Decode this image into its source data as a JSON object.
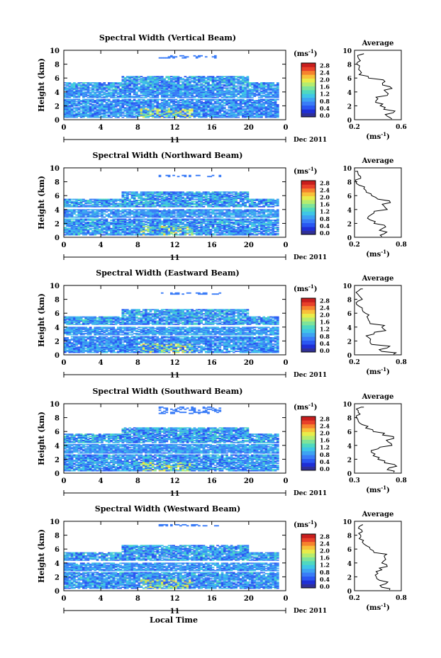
{
  "figure": {
    "xlabel_bottom": "Local Time"
  },
  "chart_data": [
    {
      "type": "heatmap",
      "title": "Spectral Width (Vertical Beam)",
      "ylabel": "Height (km)",
      "xticks": [
        "0",
        "4",
        "8",
        "12",
        "16",
        "20",
        "0"
      ],
      "yticks": [
        "0",
        "2",
        "4",
        "6",
        "8",
        "10"
      ],
      "xlim": [
        0,
        24
      ],
      "ylim": [
        0,
        10
      ],
      "day_label": "11",
      "date_label": "Dec 2011",
      "colorbar": {
        "unit": "(ms",
        "unit_exp": "-1",
        "unit_close": ")",
        "ticks": [
          "0.0",
          "0.4",
          "0.8",
          "1.2",
          "1.6",
          "2.0",
          "2.4",
          "2.8"
        ]
      },
      "cloud_layers": [
        [
          0.3,
          2.9,
          0.15,
          0.7
        ],
        [
          3.0,
          4.2,
          0.2,
          0.6
        ],
        [
          4.2,
          6.3,
          0.15,
          0.8
        ]
      ],
      "high_patch": [
        8.8,
        9.2
      ],
      "profile": {
        "title": "Average",
        "xticks": [
          "0.2",
          "0.6"
        ],
        "xlim": [
          0.2,
          0.6
        ],
        "xunit": "(ms",
        "xunit_exp": "-1",
        "xunit_close": ")",
        "heights": [
          0.1,
          0.5,
          1,
          1.5,
          2,
          2.5,
          3,
          3.5,
          4,
          4.5,
          5,
          5.5,
          6,
          6.5,
          7,
          7.5,
          8,
          8.5,
          9,
          9.5
        ],
        "values": [
          0.52,
          0.48,
          0.53,
          0.45,
          0.42,
          0.38,
          0.4,
          0.48,
          0.47,
          0.52,
          0.44,
          0.46,
          0.32,
          0.24,
          0.25,
          0.24,
          0.22,
          0.25,
          0.23,
          0.28
        ]
      }
    },
    {
      "type": "heatmap",
      "title": "Spectral Width (Northward Beam)",
      "ylabel": "Height (km)",
      "xticks": [
        "0",
        "4",
        "8",
        "12",
        "16",
        "20",
        "0"
      ],
      "yticks": [
        "0",
        "2",
        "4",
        "6",
        "8",
        "10"
      ],
      "xlim": [
        0,
        24
      ],
      "ylim": [
        0,
        10
      ],
      "day_label": "11",
      "date_label": "Dec 2011",
      "colorbar": {
        "unit": "(ms",
        "unit_exp": "-1",
        "unit_close": ")",
        "ticks": [
          "0.0",
          "0.4",
          "0.8",
          "1.2",
          "1.6",
          "2.0",
          "2.4",
          "2.8"
        ]
      },
      "cloud_layers": [
        [
          0.3,
          2.6,
          0.15,
          0.75
        ],
        [
          2.8,
          4.0,
          0.2,
          0.6
        ],
        [
          4.3,
          6.5,
          0.15,
          0.8
        ]
      ],
      "high_patch": [
        8.6,
        9.0
      ],
      "profile": {
        "title": "Average",
        "xticks": [
          "0.2",
          "0.8"
        ],
        "xlim": [
          0.2,
          0.8
        ],
        "xunit": "(ms",
        "xunit_exp": "-1",
        "xunit_close": ")",
        "heights": [
          0.1,
          0.5,
          1,
          1.5,
          2,
          2.5,
          3,
          3.5,
          4,
          4.5,
          5,
          5.5,
          6,
          6.5,
          7,
          7.5,
          8,
          8.5,
          9,
          9.5
        ],
        "values": [
          0.55,
          0.58,
          0.52,
          0.6,
          0.45,
          0.4,
          0.38,
          0.45,
          0.62,
          0.58,
          0.66,
          0.5,
          0.42,
          0.35,
          0.32,
          0.26,
          0.22,
          0.28,
          0.25,
          0.24
        ]
      }
    },
    {
      "type": "heatmap",
      "title": "Spectral Width (Eastward Beam)",
      "ylabel": "Height (km)",
      "xticks": [
        "0",
        "4",
        "8",
        "12",
        "16",
        "20",
        "0"
      ],
      "yticks": [
        "0",
        "2",
        "4",
        "6",
        "8",
        "10"
      ],
      "xlim": [
        0,
        24
      ],
      "ylim": [
        0,
        10
      ],
      "day_label": "11",
      "date_label": "Dec 2011",
      "colorbar": {
        "unit": "(ms",
        "unit_exp": "-1",
        "unit_close": ")",
        "ticks": [
          "0.0",
          "0.4",
          "0.8",
          "1.2",
          "1.6",
          "2.0",
          "2.4",
          "2.8"
        ]
      },
      "cloud_layers": [
        [
          0.3,
          2.6,
          0.15,
          0.7
        ],
        [
          2.8,
          4.0,
          0.2,
          0.6
        ],
        [
          4.2,
          6.6,
          0.15,
          0.8
        ]
      ],
      "high_patch": [
        8.6,
        9.0
      ],
      "profile": {
        "title": "Average",
        "xticks": [
          "0.2",
          "0.8"
        ],
        "xlim": [
          0.2,
          0.8
        ],
        "xunit": "(ms",
        "xunit_exp": "-1",
        "xunit_close": ")",
        "heights": [
          0.1,
          0.5,
          1,
          1.5,
          2,
          2.5,
          3,
          3.5,
          4,
          4.5,
          5,
          5.5,
          6,
          6.5,
          7,
          7.5,
          8,
          8.5,
          9,
          9.5
        ],
        "values": [
          0.7,
          0.55,
          0.62,
          0.42,
          0.4,
          0.38,
          0.45,
          0.6,
          0.55,
          0.4,
          0.38,
          0.36,
          0.34,
          0.3,
          0.26,
          0.22,
          0.3,
          0.26,
          0.22,
          0.28
        ]
      }
    },
    {
      "type": "heatmap",
      "title": "Spectral Width (Southward Beam)",
      "ylabel": "Height (km)",
      "xticks": [
        "0",
        "4",
        "8",
        "12",
        "16",
        "20",
        "0"
      ],
      "yticks": [
        "0",
        "2",
        "4",
        "6",
        "8",
        "10"
      ],
      "xlim": [
        0,
        24
      ],
      "ylim": [
        0,
        10
      ],
      "day_label": "11",
      "date_label": "Dec 2011",
      "colorbar": {
        "unit": "(ms",
        "unit_exp": "-1",
        "unit_close": ")",
        "ticks": [
          "0.0",
          "0.4",
          "0.8",
          "1.2",
          "1.6",
          "2.0",
          "2.4",
          "2.8"
        ]
      },
      "cloud_layers": [
        [
          0.3,
          2.6,
          0.15,
          0.75
        ],
        [
          2.8,
          4.1,
          0.2,
          0.6
        ],
        [
          4.3,
          6.6,
          0.15,
          0.8
        ]
      ],
      "high_patch": [
        8.5,
        9.5
      ],
      "profile": {
        "title": "Average",
        "xticks": [
          "0.3",
          "0.8"
        ],
        "xlim": [
          0.3,
          0.8
        ],
        "xunit": "(ms",
        "xunit_exp": "-1",
        "xunit_close": ")",
        "heights": [
          0.1,
          0.5,
          1,
          1.5,
          2,
          2.5,
          3,
          3.5,
          4,
          4.5,
          5,
          5.5,
          6,
          6.5,
          7,
          7.5,
          8,
          8.5,
          9,
          9.5
        ],
        "values": [
          0.72,
          0.65,
          0.75,
          0.62,
          0.55,
          0.5,
          0.48,
          0.55,
          0.7,
          0.66,
          0.72,
          0.6,
          0.5,
          0.42,
          0.38,
          0.34,
          0.32,
          0.36,
          0.34,
          0.37
        ]
      }
    },
    {
      "type": "heatmap",
      "title": "Spectral Width (Westward Beam)",
      "ylabel": "Height (km)",
      "xticks": [
        "0",
        "4",
        "8",
        "12",
        "16",
        "20",
        "0"
      ],
      "yticks": [
        "0",
        "2",
        "4",
        "6",
        "8",
        "10"
      ],
      "xlim": [
        0,
        24
      ],
      "ylim": [
        0,
        10
      ],
      "day_label": "11",
      "date_label": "Dec 2011",
      "colorbar": {
        "unit": "(ms",
        "unit_exp": "-1",
        "unit_close": ")",
        "ticks": [
          "0.0",
          "0.4",
          "0.8",
          "1.2",
          "1.6",
          "2.0",
          "2.4",
          "2.8"
        ]
      },
      "cloud_layers": [
        [
          0.3,
          2.6,
          0.15,
          0.75
        ],
        [
          2.8,
          4.0,
          0.2,
          0.6
        ],
        [
          4.2,
          6.6,
          0.15,
          0.8
        ]
      ],
      "high_patch": [
        9.2,
        9.6
      ],
      "profile": {
        "title": "Average",
        "xticks": [
          "0.2",
          "0.8"
        ],
        "xlim": [
          0.2,
          0.8
        ],
        "xunit": "(ms",
        "xunit_exp": "-1",
        "xunit_close": ")",
        "heights": [
          0.1,
          0.5,
          1,
          1.5,
          2,
          2.5,
          3,
          3.5,
          4,
          4.5,
          5,
          5.5,
          6,
          6.5,
          7,
          7.5,
          8,
          8.5,
          9,
          9.5
        ],
        "values": [
          0.65,
          0.55,
          0.6,
          0.52,
          0.48,
          0.5,
          0.55,
          0.62,
          0.55,
          0.6,
          0.58,
          0.45,
          0.4,
          0.35,
          0.3,
          0.26,
          0.28,
          0.3,
          0.25,
          0.3
        ]
      }
    }
  ]
}
